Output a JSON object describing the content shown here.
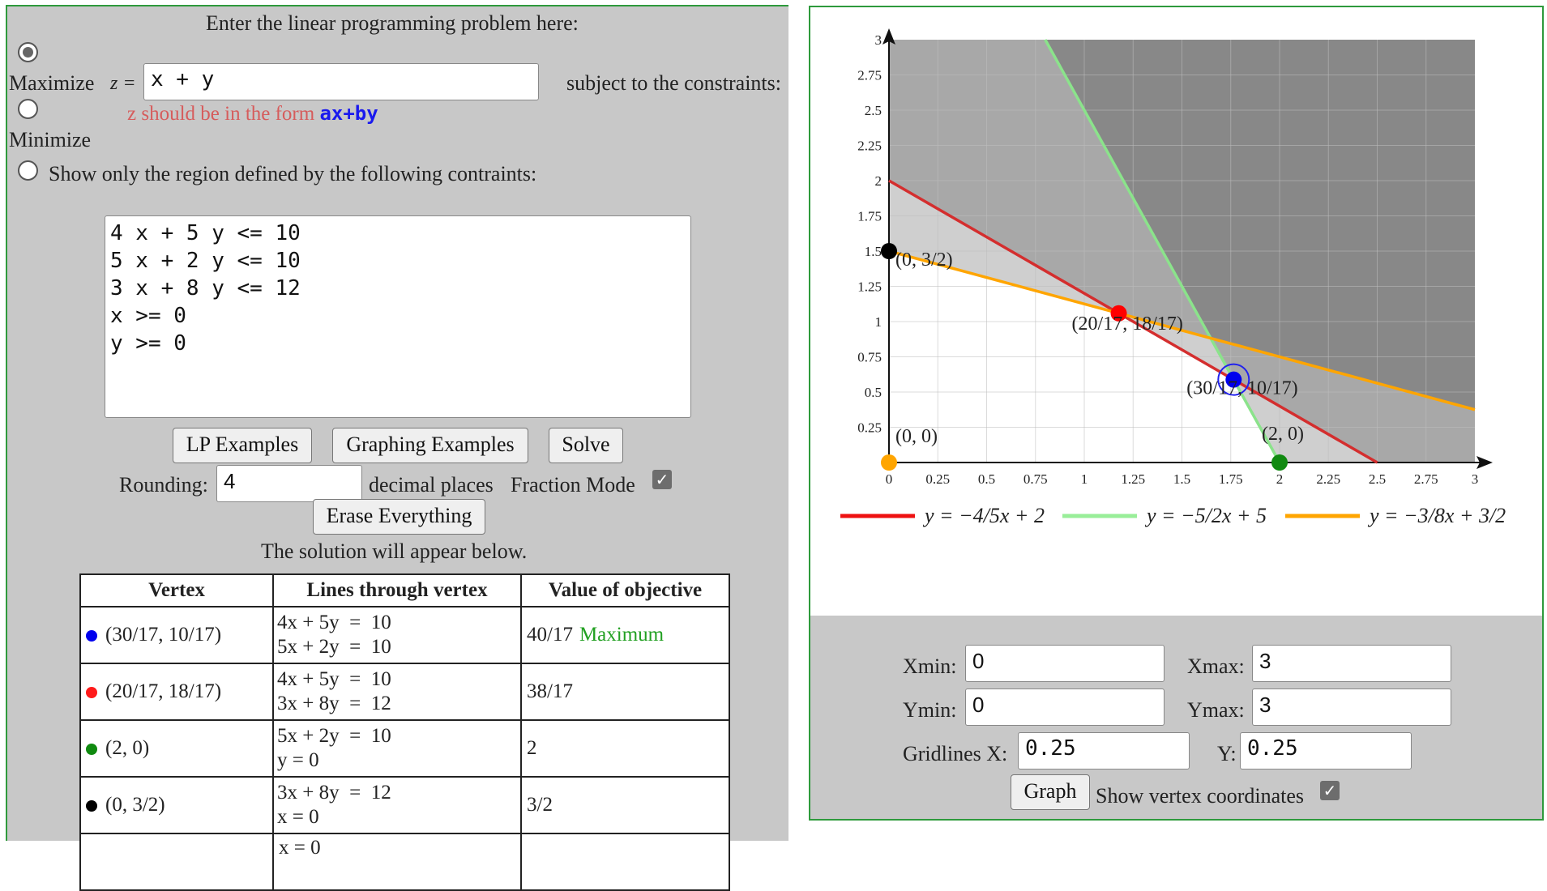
{
  "lp": {
    "heading": "Enter the linear programming problem here:",
    "maximize_label": "Maximize",
    "minimize_label": "Minimize",
    "z_prefix": "z =",
    "objective_value": "x + y",
    "subject_to": "subject to the constraints:",
    "hint_prefix": "z should be in the form ",
    "hint_code": "ax+by",
    "region_only_label": "Show only the region defined by the following contraints:",
    "constraints_text": "4 x + 5 y <= 10\n5 x + 2 y <= 10\n3 x + 8 y <= 12\nx >= 0\ny >= 0",
    "selected_mode": "maximize"
  },
  "buttons": {
    "lp_examples": "LP Examples",
    "graphing_examples": "Graphing Examples",
    "solve": "Solve",
    "erase": "Erase Everything",
    "graph": "Graph"
  },
  "rounding": {
    "label": "Rounding:",
    "value": "4",
    "suffix": "decimal places",
    "fraction_mode_label": "Fraction Mode",
    "fraction_mode_checked": true
  },
  "solution": {
    "intro": "The solution will appear below.",
    "headers": [
      "Vertex",
      "Lines through vertex",
      "Value of objective"
    ],
    "rows": [
      {
        "color": "#0000ee",
        "vertex": "(30/17, 10/17)",
        "line1": "4x + 5y  =  10",
        "line2": "5x + 2y  =  10",
        "value": "40/17",
        "note": "Maximum"
      },
      {
        "color": "#ff1a1a",
        "vertex": "(20/17, 18/17)",
        "line1": "4x + 5y  =  10",
        "line2": "3x + 8y  =  12",
        "value": "38/17",
        "note": ""
      },
      {
        "color": "#108a10",
        "vertex": "(2, 0)",
        "line1": "5x + 2y  =  10",
        "line2": "y = 0",
        "value": "2",
        "note": ""
      },
      {
        "color": "#000000",
        "vertex": "(0, 3/2)",
        "line1": "3x + 8y  =  12",
        "line2": "x = 0",
        "value": "3/2",
        "note": ""
      }
    ],
    "partial_row_text": "x = 0",
    "note_color": "#22a022"
  },
  "graph": {
    "xmin_label": "Xmin:",
    "xmin": "0",
    "xmax_label": "Xmax:",
    "xmax": "3",
    "ymin_label": "Ymin:",
    "ymin": "0",
    "ymax_label": "Ymax:",
    "ymax": "3",
    "gridx_label": "Gridlines X:",
    "gridx": "0.25",
    "gridy_label": "Y:",
    "gridy": "0.25",
    "show_vertex_label": "Show vertex coordinates",
    "show_vertex_checked": true,
    "x_ticks": [
      "0",
      "0.25",
      "0.5",
      "0.75",
      "1",
      "1.25",
      "1.5",
      "1.75",
      "2",
      "2.25",
      "2.5",
      "2.75",
      "3"
    ],
    "y_ticks": [
      "0.25",
      "0.5",
      "0.75",
      "1",
      "1.25",
      "1.5",
      "1.75",
      "2",
      "2.25",
      "2.5",
      "2.75",
      "3"
    ],
    "lines": [
      {
        "label": "y  =  −4/5x + 2",
        "slope": -0.8,
        "intercept": 2,
        "color": "#d42e2e",
        "legend_color": "#ee1111"
      },
      {
        "label": "y  =  −5/2x + 5",
        "slope": -2.5,
        "intercept": 5,
        "color": "#8be38b",
        "legend_color": "#99ee99"
      },
      {
        "label": "y  =  −3/8x + 3/2",
        "slope": -0.375,
        "intercept": 1.5,
        "color": "#ffa500",
        "legend_color": "#ffa500"
      }
    ],
    "vertices": [
      {
        "x": 0,
        "y": 0,
        "label": "(0, 0)",
        "color": "#ffa500"
      },
      {
        "x": 0,
        "y": 1.5,
        "label": "(0, 3/2)",
        "color": "#000000"
      },
      {
        "x": 1.1765,
        "y": 1.0588,
        "label": "(20/17, 18/17)",
        "color": "#ff0000"
      },
      {
        "x": 1.7647,
        "y": 0.5882,
        "label": "(30/17, 10/17)",
        "color": "#0000ee"
      },
      {
        "x": 2,
        "y": 0,
        "label": "(2, 0)",
        "color": "#108a10"
      }
    ],
    "optimal_vertex_index": 3
  }
}
